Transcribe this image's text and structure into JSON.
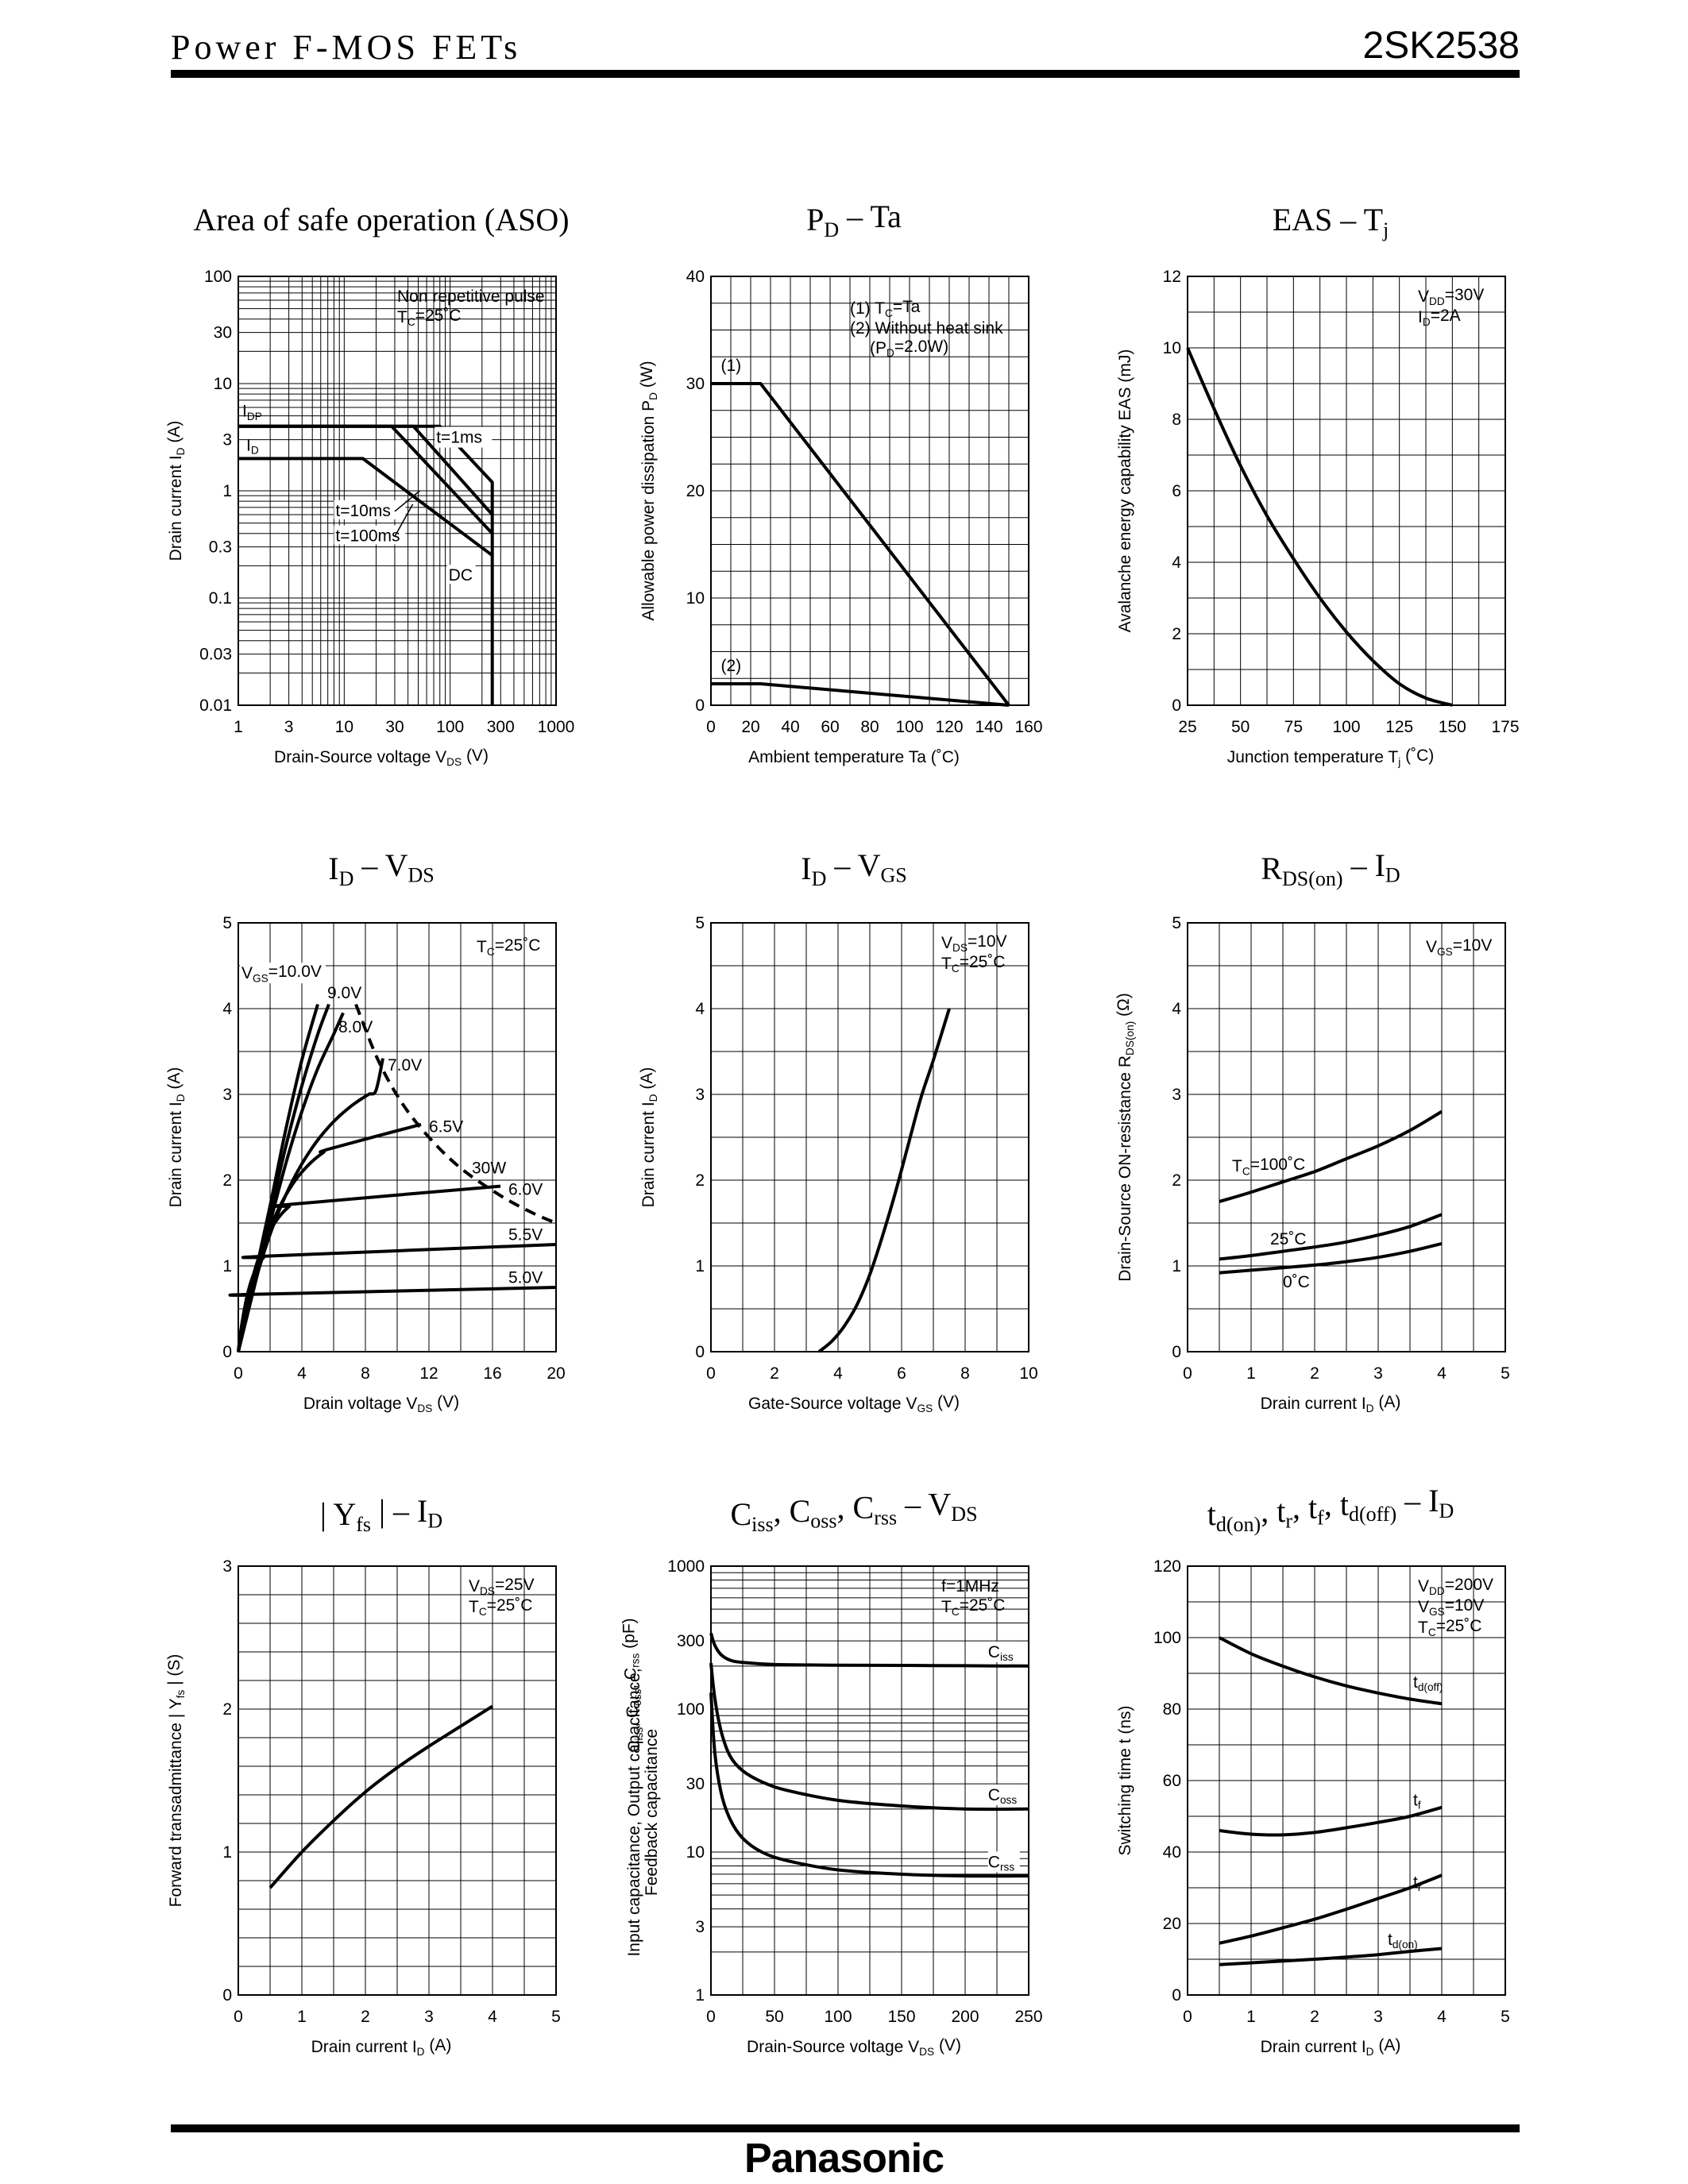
{
  "header": {
    "series": "Power F-MOS FETs",
    "part": "2SK2538"
  },
  "footer": {
    "brand": "Panasonic"
  },
  "chart_data": [
    {
      "id": "aso",
      "type": "line",
      "title": "Area of safe operation (ASO)",
      "xscale": "log",
      "yscale": "log",
      "xlim": [
        1,
        1000
      ],
      "ylim": [
        0.01,
        100
      ],
      "xticks": [
        1,
        3,
        10,
        30,
        100,
        300,
        1000
      ],
      "xtick_labels": [
        "1",
        "3",
        "10",
        "30",
        "100",
        "300",
        "1000"
      ],
      "yticks": [
        0.01,
        0.03,
        0.1,
        0.3,
        1,
        3,
        10,
        30,
        100
      ],
      "ytick_labels": [
        "0.01",
        "0.03",
        "0.1",
        "0.3",
        "1",
        "3",
        "10",
        "30",
        "100"
      ],
      "xlabel": "Drain-Source voltage   V",
      "xlabel_sub": "DS",
      "xlabel_unit": "(V)",
      "ylabel": "Drain current   I",
      "ylabel_sub": "D",
      "ylabel_unit": "(A)",
      "legend_lines": [
        "Non repetitive pulse",
        "T",
        "C",
        "=25˚C"
      ],
      "series": [
        {
          "name": "t=1ms",
          "x": [
            1,
            80,
            250,
            250
          ],
          "y": [
            4,
            4,
            1.2,
            0.01
          ]
        },
        {
          "name": "t=10ms",
          "x": [
            1,
            45,
            250
          ],
          "y": [
            4,
            4,
            0.6
          ]
        },
        {
          "name": "t=100ms",
          "x": [
            1,
            28,
            250
          ],
          "y": [
            4,
            4,
            0.4
          ]
        },
        {
          "name": "DC",
          "x": [
            1,
            15,
            250
          ],
          "y": [
            2,
            2,
            0.25
          ]
        }
      ],
      "labels": [
        "I",
        "DP",
        "I",
        "D",
        "t=1ms",
        "t=10ms",
        "t=100ms",
        "DC"
      ]
    },
    {
      "id": "pd",
      "type": "line",
      "title": "P",
      "title_sub": "D",
      "title_rest": " – Ta",
      "xlim": [
        0,
        160
      ],
      "ylim": [
        0,
        40
      ],
      "xticks": [
        0,
        20,
        40,
        60,
        80,
        100,
        120,
        140,
        160
      ],
      "xtick_labels": [
        "0",
        "20",
        "40",
        "60",
        "80",
        "100",
        "120",
        "140",
        "160"
      ],
      "yticks": [
        0,
        10,
        20,
        30,
        40
      ],
      "ytick_labels": [
        "0",
        "10",
        "20",
        "30",
        "40"
      ],
      "xlabel": "Ambient temperature   Ta   (˚C)",
      "ylabel": "Allowable power dissipation   P",
      "ylabel_sub": "D",
      "ylabel_unit": "(W)",
      "legend_lines": [
        "(1) T",
        "C",
        "=Ta",
        "(2) Without heat sink",
        "(P",
        "D",
        "=2.0W)"
      ],
      "series": [
        {
          "name": "(1)",
          "x": [
            0,
            25,
            150
          ],
          "y": [
            30,
            30,
            0
          ]
        },
        {
          "name": "(2)",
          "x": [
            0,
            25,
            150
          ],
          "y": [
            2,
            2,
            0
          ]
        }
      ]
    },
    {
      "id": "eas",
      "type": "line",
      "title": "EAS – T",
      "title_sub": "j",
      "xlim": [
        25,
        175
      ],
      "ylim": [
        0,
        12
      ],
      "xticks": [
        25,
        50,
        75,
        100,
        125,
        150,
        175
      ],
      "xtick_labels": [
        "25",
        "50",
        "75",
        "100",
        "125",
        "150",
        "175"
      ],
      "yticks": [
        0,
        2,
        4,
        6,
        8,
        10,
        12
      ],
      "ytick_labels": [
        "0",
        "2",
        "4",
        "6",
        "8",
        "10",
        "12"
      ],
      "xlabel": "Junction temperature   T",
      "xlabel_sub": "j",
      "xlabel_unit": "(˚C)",
      "ylabel": "Avalanche energy capability   EAS   (mJ)",
      "legend_lines": [
        "V",
        "DD",
        "=30V",
        "I",
        "D",
        "=2A"
      ],
      "series": [
        {
          "name": "EAS",
          "x": [
            25,
            37.5,
            50,
            62.5,
            75,
            87.5,
            100,
            112.5,
            125,
            137.5,
            150
          ],
          "y": [
            10,
            8.3,
            6.7,
            5.3,
            4.1,
            3.0,
            2.05,
            1.25,
            0.6,
            0.2,
            0
          ]
        }
      ]
    },
    {
      "id": "idvds",
      "type": "line",
      "title": "I",
      "title_sub": "D",
      "title_rest": " – V",
      "title_sub2": "DS",
      "xlim": [
        0,
        20
      ],
      "ylim": [
        0,
        5
      ],
      "xticks": [
        0,
        4,
        8,
        12,
        16,
        20
      ],
      "xtick_labels": [
        "0",
        "4",
        "8",
        "12",
        "16",
        "20"
      ],
      "yticks": [
        0,
        1,
        2,
        3,
        4,
        5
      ],
      "ytick_labels": [
        "0",
        "1",
        "2",
        "3",
        "4",
        "5"
      ],
      "xlabel": "Drain voltage   V",
      "xlabel_sub": "DS",
      "xlabel_unit": "(V)",
      "ylabel": "Drain current   I",
      "ylabel_sub": "D",
      "ylabel_unit": "(A)",
      "legend_lines": [
        "T",
        "C",
        "=25˚C"
      ],
      "series": [
        {
          "name": "5.0V",
          "sat": 0.75,
          "k": 0.8,
          "xend": 20
        },
        {
          "name": "5.5V",
          "sat": 1.25,
          "k": 0.72,
          "xend": 20
        },
        {
          "name": "6.0V",
          "sat": 1.93,
          "k": 0.55,
          "xend": 16.5
        },
        {
          "name": "6.5V",
          "sat": 2.65,
          "k": 0.45,
          "xend": 11.5
        },
        {
          "name": "7.0V",
          "sat": 3.42,
          "k": 0.38,
          "xend": 9.1
        },
        {
          "name": "8.0V",
          "x": [
            0,
            1,
            2,
            3,
            4,
            5,
            6,
            6.6
          ],
          "y": [
            0,
            0.75,
            1.5,
            2.2,
            2.8,
            3.3,
            3.7,
            3.95
          ]
        },
        {
          "name": "9.0V",
          "x": [
            0,
            1,
            2,
            3,
            4,
            5,
            5.7
          ],
          "y": [
            0,
            0.8,
            1.6,
            2.4,
            3.1,
            3.7,
            4.05
          ]
        },
        {
          "name": "VGS=10.0V",
          "x": [
            0,
            1,
            2,
            3,
            4,
            5
          ],
          "y": [
            0,
            0.85,
            1.7,
            2.6,
            3.4,
            4.05
          ]
        },
        {
          "name": "30W",
          "dashed": true,
          "x": [
            7.4,
            8.8,
            10.3,
            12,
            14,
            16.5,
            18.5,
            20
          ],
          "y": [
            4.05,
            3.4,
            2.9,
            2.5,
            2.14,
            1.82,
            1.62,
            1.5
          ]
        }
      ],
      "labels": [
        "V",
        "GS",
        "=10.0V",
        "9.0V",
        "8.0V",
        "7.0V",
        "6.5V",
        "30W",
        "6.0V",
        "5.5V",
        "5.0V"
      ]
    },
    {
      "id": "idvgs",
      "type": "line",
      "title": "I",
      "title_sub": "D",
      "title_rest": " – V",
      "title_sub2": "GS",
      "xlim": [
        0,
        10
      ],
      "ylim": [
        0,
        5
      ],
      "xticks": [
        0,
        2,
        4,
        6,
        8,
        10
      ],
      "xtick_labels": [
        "0",
        "2",
        "4",
        "6",
        "8",
        "10"
      ],
      "yticks": [
        0,
        1,
        2,
        3,
        4,
        5
      ],
      "ytick_labels": [
        "0",
        "1",
        "2",
        "3",
        "4",
        "5"
      ],
      "xlabel": "Gate-Source voltage   V",
      "xlabel_sub": "GS",
      "xlabel_unit": "(V)",
      "ylabel": "Drain current   I",
      "ylabel_sub": "D",
      "ylabel_unit": "(A)",
      "legend_lines": [
        "V",
        "DS",
        "=10V",
        "T",
        "C",
        "=25˚C"
      ],
      "series": [
        {
          "name": "ID",
          "x": [
            3.4,
            3.8,
            4.2,
            4.6,
            5.0,
            5.4,
            5.8,
            6.2,
            6.6,
            7.0,
            7.5
          ],
          "y": [
            0,
            0.12,
            0.3,
            0.55,
            0.9,
            1.35,
            1.85,
            2.4,
            2.95,
            3.4,
            4.0
          ]
        }
      ]
    },
    {
      "id": "rds",
      "type": "line",
      "title": "R",
      "title_sub": "DS(on)",
      "title_rest": " – I",
      "title_sub2": "D",
      "xlim": [
        0,
        5
      ],
      "ylim": [
        0,
        5
      ],
      "xticks": [
        0,
        1,
        2,
        3,
        4,
        5
      ],
      "xtick_labels": [
        "0",
        "1",
        "2",
        "3",
        "4",
        "5"
      ],
      "yticks": [
        0,
        1,
        2,
        3,
        4,
        5
      ],
      "ytick_labels": [
        "0",
        "1",
        "2",
        "3",
        "4",
        "5"
      ],
      "xlabel": "Drain current   I",
      "xlabel_sub": "D",
      "xlabel_unit": "(A)",
      "ylabel": "Drain-Source ON-resistance   R",
      "ylabel_sub": "DS(on)",
      "ylabel_unit": "(Ω)",
      "legend_lines": [
        "V",
        "GS",
        "=10V"
      ],
      "series": [
        {
          "name": "TC=100˚C",
          "x": [
            0.5,
            1,
            1.5,
            2,
            2.5,
            3,
            3.5,
            4
          ],
          "y": [
            1.75,
            1.86,
            1.98,
            2.1,
            2.25,
            2.4,
            2.58,
            2.8
          ]
        },
        {
          "name": "25˚C",
          "x": [
            0.5,
            1,
            1.5,
            2,
            2.5,
            3,
            3.5,
            4
          ],
          "y": [
            1.08,
            1.12,
            1.17,
            1.22,
            1.28,
            1.36,
            1.46,
            1.6
          ]
        },
        {
          "name": "0˚C",
          "x": [
            0.5,
            1,
            1.5,
            2,
            2.5,
            3,
            3.5,
            4
          ],
          "y": [
            0.92,
            0.95,
            0.98,
            1.01,
            1.05,
            1.1,
            1.17,
            1.26
          ]
        }
      ],
      "labels": [
        "T",
        "C",
        "=100˚C",
        "25˚C",
        "0˚C"
      ]
    },
    {
      "id": "yfs",
      "type": "line",
      "title": "| Y",
      "title_sub": "fs",
      "title_rest": " | – I",
      "title_sub2": "D",
      "xlim": [
        0,
        5
      ],
      "ylim": [
        0,
        3
      ],
      "xticks": [
        0,
        1,
        2,
        3,
        4,
        5
      ],
      "xtick_labels": [
        "0",
        "1",
        "2",
        "3",
        "4",
        "5"
      ],
      "yticks": [
        0,
        1,
        2,
        3
      ],
      "ytick_labels": [
        "0",
        "1",
        "2",
        "3"
      ],
      "xlabel": "Drain current   I",
      "xlabel_sub": "D",
      "xlabel_unit": "(A)",
      "ylabel": "Forward transadmittance   | Y",
      "ylabel_sub": "fs",
      "ylabel_unit": "|   (S)",
      "legend_lines": [
        "V",
        "DS",
        "=25V",
        "T",
        "C",
        "=25˚C"
      ],
      "series": [
        {
          "name": "Yfs",
          "x": [
            0.5,
            1,
            1.5,
            2,
            2.5,
            3,
            3.5,
            4
          ],
          "y": [
            0.75,
            1.0,
            1.22,
            1.42,
            1.59,
            1.74,
            1.88,
            2.02
          ]
        }
      ]
    },
    {
      "id": "cap",
      "type": "line",
      "title": "C",
      "title_sub": "iss",
      "title_rest": ", C",
      "title_sub2": "oss",
      "title_rest2": ", C",
      "title_sub3": "rss",
      "title_rest3": " – V",
      "title_sub4": "DS",
      "xlim": [
        0,
        250
      ],
      "ylim": [
        1,
        1000
      ],
      "yscale": "log",
      "xticks": [
        0,
        50,
        100,
        150,
        200,
        250
      ],
      "xtick_labels": [
        "0",
        "50",
        "100",
        "150",
        "200",
        "250"
      ],
      "yticks": [
        1,
        3,
        10,
        30,
        100,
        300,
        1000
      ],
      "ytick_labels": [
        "1",
        "3",
        "10",
        "30",
        "100",
        "300",
        "1000"
      ],
      "xlabel": "Drain-Source voltage   V",
      "xlabel_sub": "DS",
      "xlabel_unit": "(V)",
      "ylabel": "Input capacitance, Output capacitance,",
      "ylabel2": "Feedback capacitance",
      "ylabel_c": "C",
      "ylabel_cs": [
        "iss",
        "oss",
        "rss"
      ],
      "ylabel_unit": "(pF)",
      "legend_lines": [
        "f=1MHz",
        "T",
        "C",
        "=25˚C"
      ],
      "series": [
        {
          "name": "Ciss",
          "x": [
            0,
            3,
            8,
            15,
            25,
            50,
            100,
            150,
            200,
            250
          ],
          "y": [
            340,
            280,
            240,
            220,
            212,
            205,
            203,
            202,
            201,
            200
          ]
        },
        {
          "name": "Coss",
          "x": [
            0,
            3,
            8,
            15,
            25,
            40,
            60,
            100,
            150,
            200,
            250
          ],
          "y": [
            210,
            120,
            70,
            47,
            37,
            31,
            27,
            23,
            21,
            20,
            20
          ]
        },
        {
          "name": "Crss",
          "x": [
            0,
            3,
            8,
            15,
            25,
            40,
            60,
            100,
            150,
            200,
            250
          ],
          "y": [
            130,
            50,
            26,
            17,
            12.5,
            10,
            8.7,
            7.5,
            7.0,
            6.8,
            6.8
          ]
        }
      ],
      "labels": [
        "C",
        "iss",
        "C",
        "oss",
        "C",
        "rss"
      ]
    },
    {
      "id": "sw",
      "type": "line",
      "title": "t",
      "title_sub": "d(on)",
      "title_rest": ", t",
      "title_sub2": "r",
      "title_rest2": ", t",
      "title_sub3": "f",
      "title_rest3": ", t",
      "title_sub4": "d(off)",
      "title_rest4": " – I",
      "title_sub5": "D",
      "xlim": [
        0,
        5
      ],
      "ylim": [
        0,
        120
      ],
      "xticks": [
        0,
        1,
        2,
        3,
        4,
        5
      ],
      "xtick_labels": [
        "0",
        "1",
        "2",
        "3",
        "4",
        "5"
      ],
      "yticks": [
        0,
        20,
        40,
        60,
        80,
        100,
        120
      ],
      "ytick_labels": [
        "0",
        "20",
        "40",
        "60",
        "80",
        "100",
        "120"
      ],
      "xlabel": "Drain current   I",
      "xlabel_sub": "D",
      "xlabel_unit": "(A)",
      "ylabel": "Switching time   t   (ns)",
      "legend_lines": [
        "V",
        "DD",
        "=200V",
        "V",
        "GS",
        "=10V",
        "T",
        "C",
        "=25˚C"
      ],
      "series": [
        {
          "name": "td(off)",
          "x": [
            0.5,
            1,
            1.5,
            2,
            2.5,
            3,
            3.5,
            4
          ],
          "y": [
            100,
            95.5,
            92,
            89,
            86.5,
            84.5,
            82.8,
            81.5
          ]
        },
        {
          "name": "tf",
          "x": [
            0.5,
            1,
            1.5,
            2,
            2.5,
            3,
            3.5,
            4
          ],
          "y": [
            46,
            45,
            44.8,
            45.5,
            46.8,
            48.3,
            50,
            52.5
          ]
        },
        {
          "name": "tr",
          "x": [
            0.5,
            1,
            1.5,
            2,
            2.5,
            3,
            3.5,
            4
          ],
          "y": [
            14.5,
            16.5,
            18.8,
            21.2,
            24,
            27,
            30,
            33.5
          ]
        },
        {
          "name": "td(on)",
          "x": [
            0.5,
            1,
            1.5,
            2,
            2.5,
            3,
            3.5,
            4
          ],
          "y": [
            8.5,
            9,
            9.5,
            10,
            10.6,
            11.3,
            12.2,
            13
          ]
        }
      ],
      "labels": [
        "t",
        "d(off)",
        "t",
        "f",
        "t",
        "r",
        "t",
        "d(on)"
      ]
    }
  ]
}
